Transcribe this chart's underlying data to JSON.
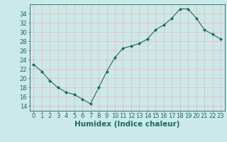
{
  "x": [
    0,
    1,
    2,
    3,
    4,
    5,
    6,
    7,
    8,
    9,
    10,
    11,
    12,
    13,
    14,
    15,
    16,
    17,
    18,
    19,
    20,
    21,
    22,
    23
  ],
  "y": [
    23,
    21.5,
    19.5,
    18,
    17,
    16.5,
    15.5,
    14.5,
    18,
    21.5,
    24.5,
    26.5,
    27,
    27.5,
    28.5,
    30.5,
    31.5,
    33,
    35,
    35,
    33,
    30.5,
    29.5,
    28.5
  ],
  "line_color": "#1a6b5a",
  "marker": "D",
  "marker_size": 2,
  "bg_color": "#cce9e9",
  "grid_color": "#f0b0b0",
  "xlabel": "Humidex (Indice chaleur)",
  "xlabel_fontsize": 7.5,
  "tick_fontsize": 6,
  "ylim": [
    13,
    36
  ],
  "yticks": [
    14,
    16,
    18,
    20,
    22,
    24,
    26,
    28,
    30,
    32,
    34
  ],
  "xlim": [
    -0.5,
    23.5
  ],
  "xticks": [
    0,
    1,
    2,
    3,
    4,
    5,
    6,
    7,
    8,
    9,
    10,
    11,
    12,
    13,
    14,
    15,
    16,
    17,
    18,
    19,
    20,
    21,
    22,
    23
  ]
}
